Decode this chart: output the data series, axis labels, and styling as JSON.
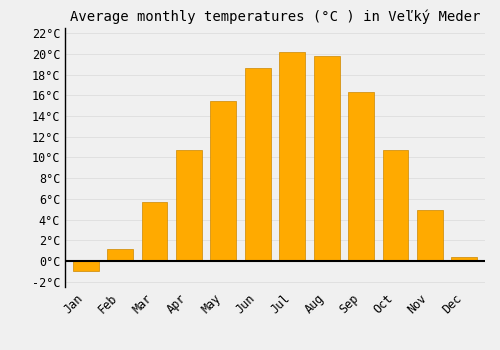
{
  "title": "Average monthly temperatures (°C ) in Veľký Meder",
  "months": [
    "Jan",
    "Feb",
    "Mar",
    "Apr",
    "May",
    "Jun",
    "Jul",
    "Aug",
    "Sep",
    "Oct",
    "Nov",
    "Dec"
  ],
  "values": [
    -1.0,
    1.2,
    5.7,
    10.7,
    15.5,
    18.6,
    20.2,
    19.8,
    16.3,
    10.7,
    4.9,
    0.4
  ],
  "bar_color": "#FFAA00",
  "bar_edge_color": "#CC8800",
  "background_color": "#F0F0F0",
  "grid_color": "#DDDDDD",
  "ylim": [
    -2.5,
    22.5
  ],
  "yticks": [
    -2,
    0,
    2,
    4,
    6,
    8,
    10,
    12,
    14,
    16,
    18,
    20,
    22
  ],
  "title_fontsize": 10,
  "tick_fontsize": 8.5,
  "bar_width": 0.75
}
